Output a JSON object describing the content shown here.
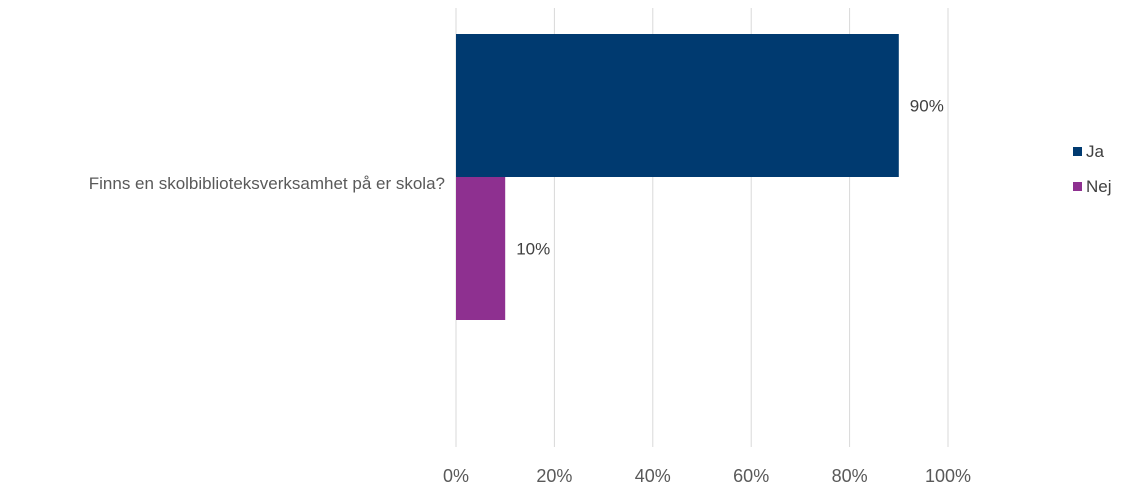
{
  "chart_data": {
    "type": "bar",
    "orientation": "horizontal",
    "categories": [
      "Finns en skolbiblioteksverksamhet på er skola?"
    ],
    "series": [
      {
        "name": "Ja",
        "values": [
          90
        ],
        "color": "#003a70",
        "data_label": "90%"
      },
      {
        "name": "Nej",
        "values": [
          10
        ],
        "color": "#8e3090",
        "data_label": "10%"
      }
    ],
    "x_ticks": [
      "0%",
      "20%",
      "40%",
      "60%",
      "80%",
      "100%"
    ],
    "xlim": [
      0,
      100
    ],
    "grid": true,
    "legend": "right",
    "title": "",
    "xlabel": "",
    "ylabel": ""
  }
}
